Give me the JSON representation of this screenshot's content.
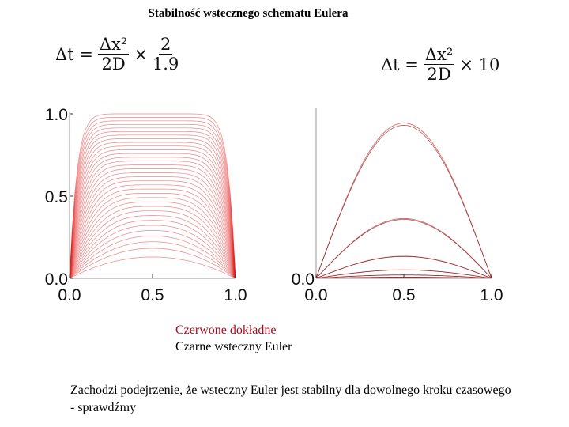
{
  "title": "Stabilność wstecznego schematu Eulera",
  "formula_left": {
    "lhs": "Δt =",
    "num": "Δx²",
    "den": "2D",
    "times": "×",
    "num2": "2",
    "den2": "1.9"
  },
  "formula_right": {
    "lhs": "Δt =",
    "num": "Δx²",
    "den": "2D",
    "times": "× 10"
  },
  "legend": {
    "red": "Czerwone dokładne",
    "black": "Czarne wsteczny Euler"
  },
  "note": "Zachodzi podejrzenie, że wsteczny Euler jest stabilny dla dowolnego kroku czasowego - sprawdźmy",
  "colors": {
    "exact": "#e02020",
    "euler": "#5a0a0a"
  },
  "chart_data": [
    {
      "type": "line",
      "x_ticks": [
        "0.0",
        "0.5",
        "1.0"
      ],
      "y_ticks": [
        "0.0",
        "0.5",
        "1.0"
      ],
      "xlim": [
        0,
        1
      ],
      "ylim": [
        0,
        1
      ],
      "series_kind": "parabolic_flat_top_family",
      "curve_count": 34
    },
    {
      "type": "line",
      "x_ticks": [
        "0.0",
        "0.5",
        "1.0"
      ],
      "y_ticks": [
        "0.0"
      ],
      "xlim": [
        0,
        1
      ],
      "ylim": [
        0,
        1
      ],
      "series_kind": "parabola_family",
      "amplitudes": [
        0.91,
        0.35,
        0.13,
        0.05,
        0.02,
        0.007
      ]
    }
  ]
}
